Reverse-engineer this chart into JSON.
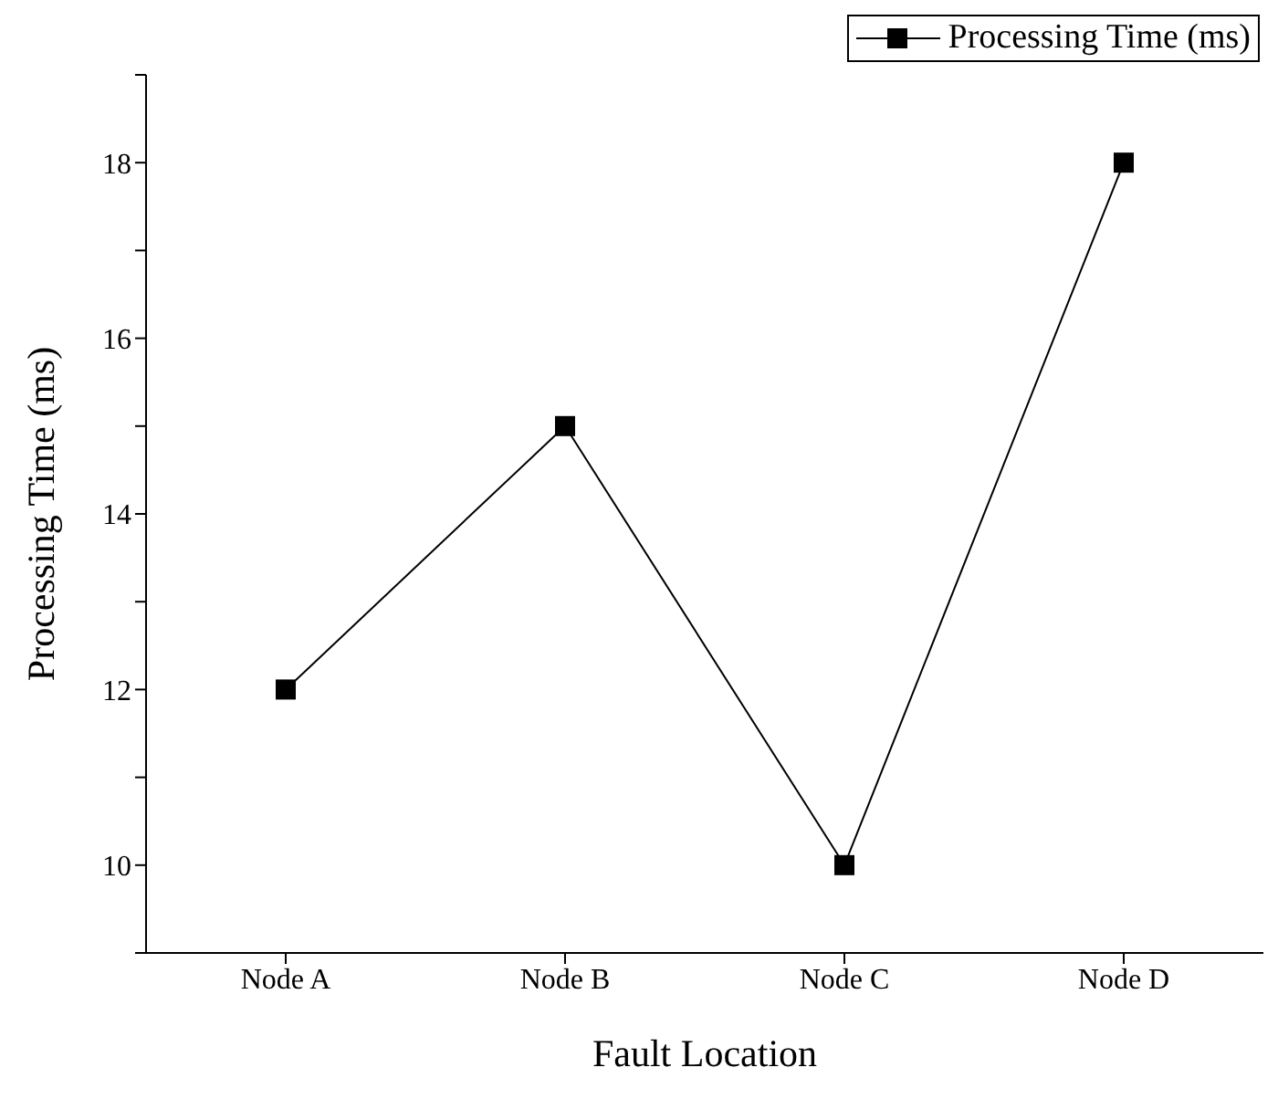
{
  "chart_data": {
    "type": "line",
    "xlabel": "Fault Location",
    "ylabel": "Processing Time (ms)",
    "categories": [
      "Node A",
      "Node B",
      "Node C",
      "Node D"
    ],
    "series": [
      {
        "name": "Processing Time (ms)",
        "color": "#000000",
        "values": [
          12,
          15,
          10,
          18
        ]
      }
    ],
    "ylim": [
      9,
      19
    ],
    "yticks": [
      {
        "value": 9,
        "label": null
      },
      10,
      {
        "value": 11,
        "label": null
      },
      12,
      {
        "value": 13,
        "label": null
      },
      14,
      {
        "value": 15,
        "label": null
      },
      16,
      {
        "value": 17,
        "label": null
      },
      18,
      {
        "value": 19,
        "label": null
      }
    ],
    "marker": "square",
    "line_style": "solid",
    "legend": "top right",
    "grid": false
  }
}
